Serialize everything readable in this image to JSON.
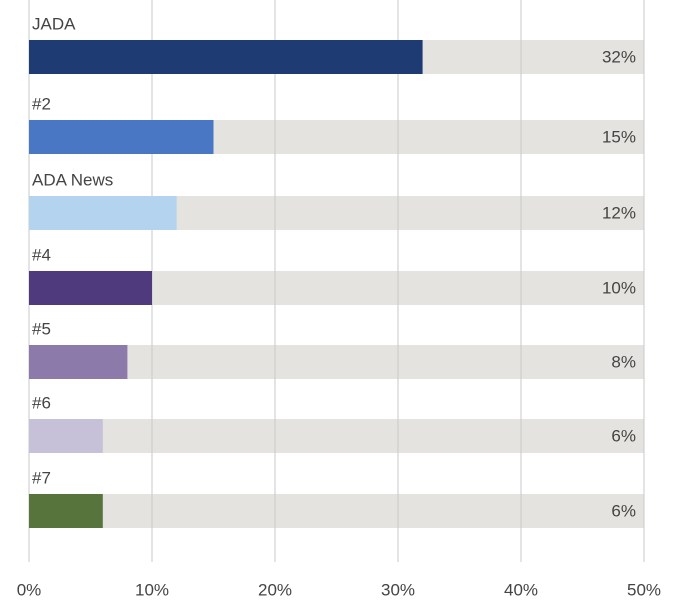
{
  "chart_data": {
    "type": "bar",
    "orientation": "horizontal",
    "categories": [
      "JADA",
      "#2",
      "ADA News",
      "#4",
      "#5",
      "#6",
      "#7"
    ],
    "values": [
      32,
      15,
      12,
      10,
      8,
      6,
      6
    ],
    "value_labels": [
      "32%",
      "15%",
      "12%",
      "10%",
      "8%",
      "6%",
      "6%"
    ],
    "colors": [
      "#1f3b73",
      "#4a77c4",
      "#b3d3ef",
      "#4f3a7e",
      "#8c7aab",
      "#c6c1d9",
      "#56743c"
    ],
    "track_color": "#e4e3df",
    "xlim": [
      0,
      50
    ],
    "xticks": [
      {
        "value": 0,
        "label": "0%"
      },
      {
        "value": 10,
        "label": "10%"
      },
      {
        "value": 20,
        "label": "20%"
      },
      {
        "value": 30,
        "label": "30%"
      },
      {
        "value": 40,
        "label": "40%"
      },
      {
        "value": 50,
        "label": "50%"
      }
    ],
    "grid": true
  }
}
